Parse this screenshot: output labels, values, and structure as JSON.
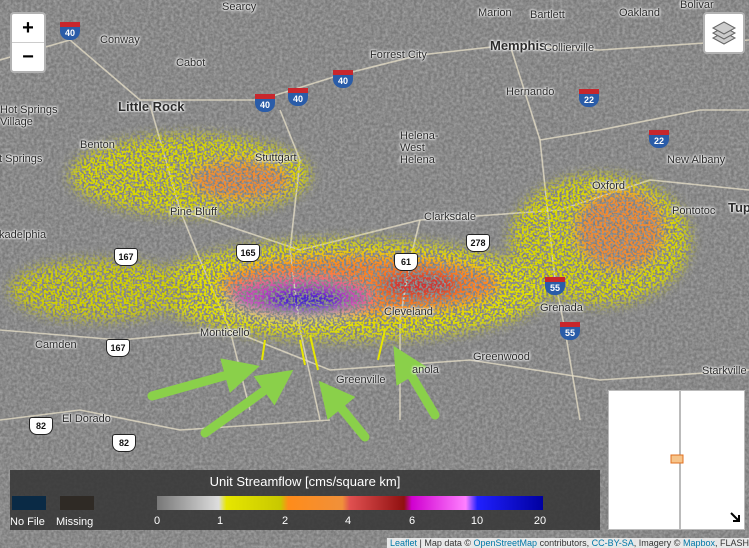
{
  "zoom": {
    "in": "+",
    "out": "−"
  },
  "places": [
    "Searcy",
    "Marion",
    "Bartlett",
    "Oakland",
    "Bolivar",
    "Conway",
    "Memphis",
    "Collierville",
    "Cabot",
    "Forrest City",
    "Little Rock",
    "Hernando",
    "Hot Springs Village",
    "Benton",
    "Helena-West Helena",
    "Stuttgart",
    "t Springs",
    "New Albany",
    "Oxford",
    "Pine Bluff",
    "Clarksdale",
    "Pontotoc",
    "Tup",
    "kadelphia",
    "Cleveland",
    "Grenada",
    "Monticello",
    "Camden",
    "Greenwood",
    "Greenville",
    "anola",
    "Starkville",
    "El Dorado"
  ],
  "interstates": [
    "40",
    "40",
    "40",
    "40",
    "22",
    "22",
    "55",
    "55"
  ],
  "us_routes": [
    "278",
    "167",
    "165",
    "61",
    "167",
    "82",
    "82"
  ],
  "legend": {
    "title": "Unit Streamflow [cms/square km]",
    "swatches": [
      "No File",
      "Missing"
    ],
    "ticks": [
      0,
      1,
      2,
      4,
      6,
      10,
      20
    ]
  },
  "attribution": {
    "leaflet": "Leaflet",
    "sep": " | Map data © ",
    "osm": "OpenStreetMap",
    "contrib": " contributors, ",
    "license": "CC-BY-SA",
    "imagery": ", Imagery © ",
    "mapbox": "Mapbox",
    "end": ", FLASH"
  }
}
